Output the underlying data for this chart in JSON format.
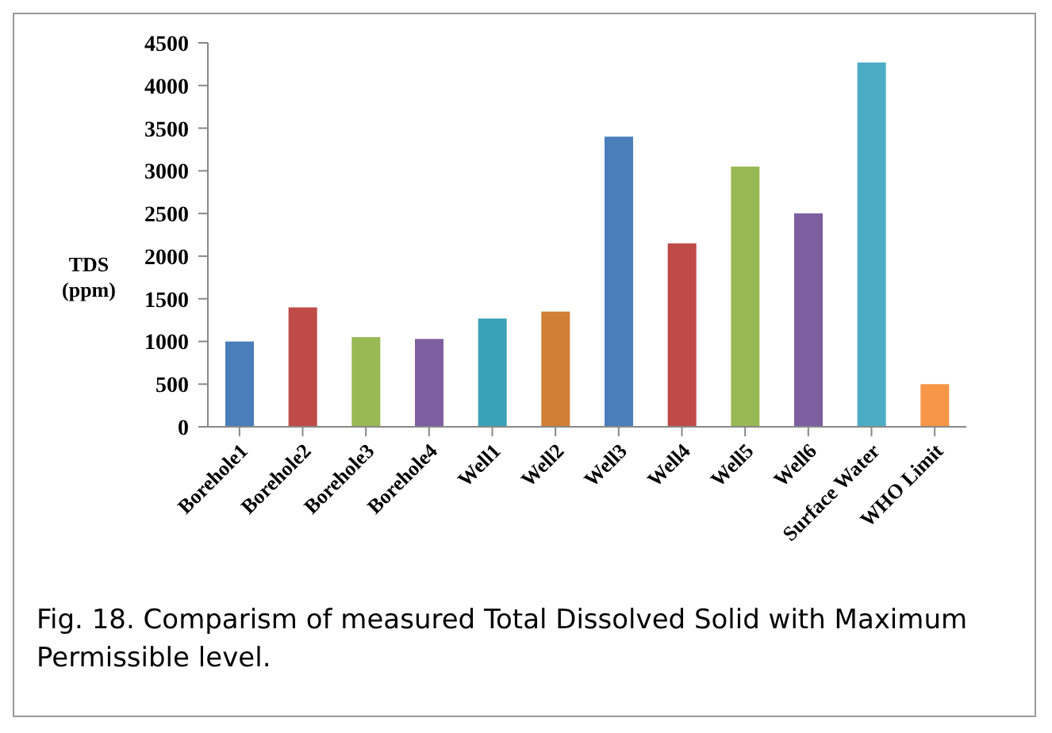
{
  "chart_data": {
    "type": "bar",
    "ylabel": "TDS (ppm)",
    "categories": [
      "Borehole1",
      "Borehole2",
      "Borehole3",
      "Borehole4",
      "Well1",
      "Well2",
      "Well3",
      "Well4",
      "Well5",
      "Well6",
      "Surface Water",
      "WHO Limit"
    ],
    "values": [
      1000,
      1400,
      1050,
      1030,
      1270,
      1350,
      3400,
      2150,
      3050,
      2500,
      4270,
      500
    ],
    "colors": [
      "#4a7ebb",
      "#be4b48",
      "#98b954",
      "#7d5fa0",
      "#3aa0b8",
      "#d07f35",
      "#4a7ebb",
      "#be4b48",
      "#98b954",
      "#7d5fa0",
      "#4bacc6",
      "#f79646"
    ],
    "ylim": [
      0,
      4500
    ],
    "yticks": [
      0,
      500,
      1000,
      1500,
      2000,
      2500,
      3000,
      3500,
      4000,
      4500
    ],
    "grid": false,
    "legend": false,
    "annotations": [
      "Fig. 18. Comparism of measured Total Dissolved Solid with Maximum Permissible level."
    ]
  }
}
